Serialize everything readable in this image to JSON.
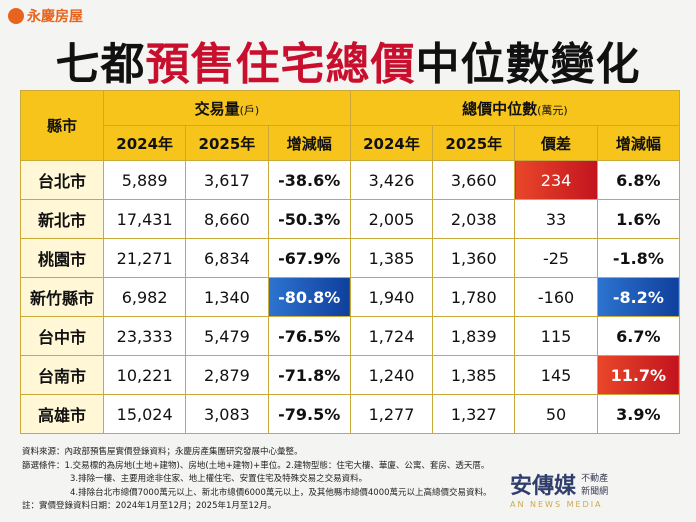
{
  "header": {
    "logo": "永慶房屋",
    "title_parts": [
      "七都",
      "預售住宅總價",
      "中位數變化"
    ]
  },
  "table": {
    "corner": "縣市",
    "groups": [
      {
        "label": "交易量",
        "unit": "(戶)"
      },
      {
        "label": "總價中位數",
        "unit": "(萬元)"
      }
    ],
    "columns": [
      "2024年",
      "2025年",
      "增減幅",
      "2024年",
      "2025年",
      "價差",
      "增減幅"
    ],
    "rows": [
      [
        "台北市",
        "5,889",
        "3,617",
        "-38.6%",
        "3,426",
        "3,660",
        "234",
        "6.8%"
      ],
      [
        "新北市",
        "17,431",
        "8,660",
        "-50.3%",
        "2,005",
        "2,038",
        "33",
        "1.6%"
      ],
      [
        "桃園市",
        "21,271",
        "6,834",
        "-67.9%",
        "1,385",
        "1,360",
        "-25",
        "-1.8%"
      ],
      [
        "新竹縣市",
        "6,982",
        "1,340",
        "-80.8%",
        "1,940",
        "1,780",
        "-160",
        "-8.2%"
      ],
      [
        "台中市",
        "23,333",
        "5,479",
        "-76.5%",
        "1,724",
        "1,839",
        "115",
        "6.7%"
      ],
      [
        "台南市",
        "10,221",
        "2,879",
        "-71.8%",
        "1,240",
        "1,385",
        "145",
        "11.7%"
      ],
      [
        "高雄市",
        "15,024",
        "3,083",
        "-79.5%",
        "1,277",
        "1,327",
        "50",
        "3.9%"
      ]
    ]
  },
  "notes": [
    "資料來源：內政部預售屋實價登錄資料；永慶房產集團研究發展中心彙整。",
    "篩選條件：1.交易標的為房地(土地+建物)、房地(土地+建物)+車位。2.建物型態：住宅大樓、華廈、公寓、套房、透天厝。",
    "3.排除一樓、主要用途非住家、地上權住宅、安置住宅及特殊交易之交易資料。",
    "4.排除台北市總價7000萬元以上、新北市總價6000萬元以上，及其他縣市總價4000萬元以上高總價交易資料。",
    "註：實價登錄資料日期：2024年1月至12月；2025年1月至12月。"
  ],
  "watermark": {
    "name": "安傳媒",
    "tag": "不動產新聞網",
    "en": "AN NEWS MEDIA"
  }
}
